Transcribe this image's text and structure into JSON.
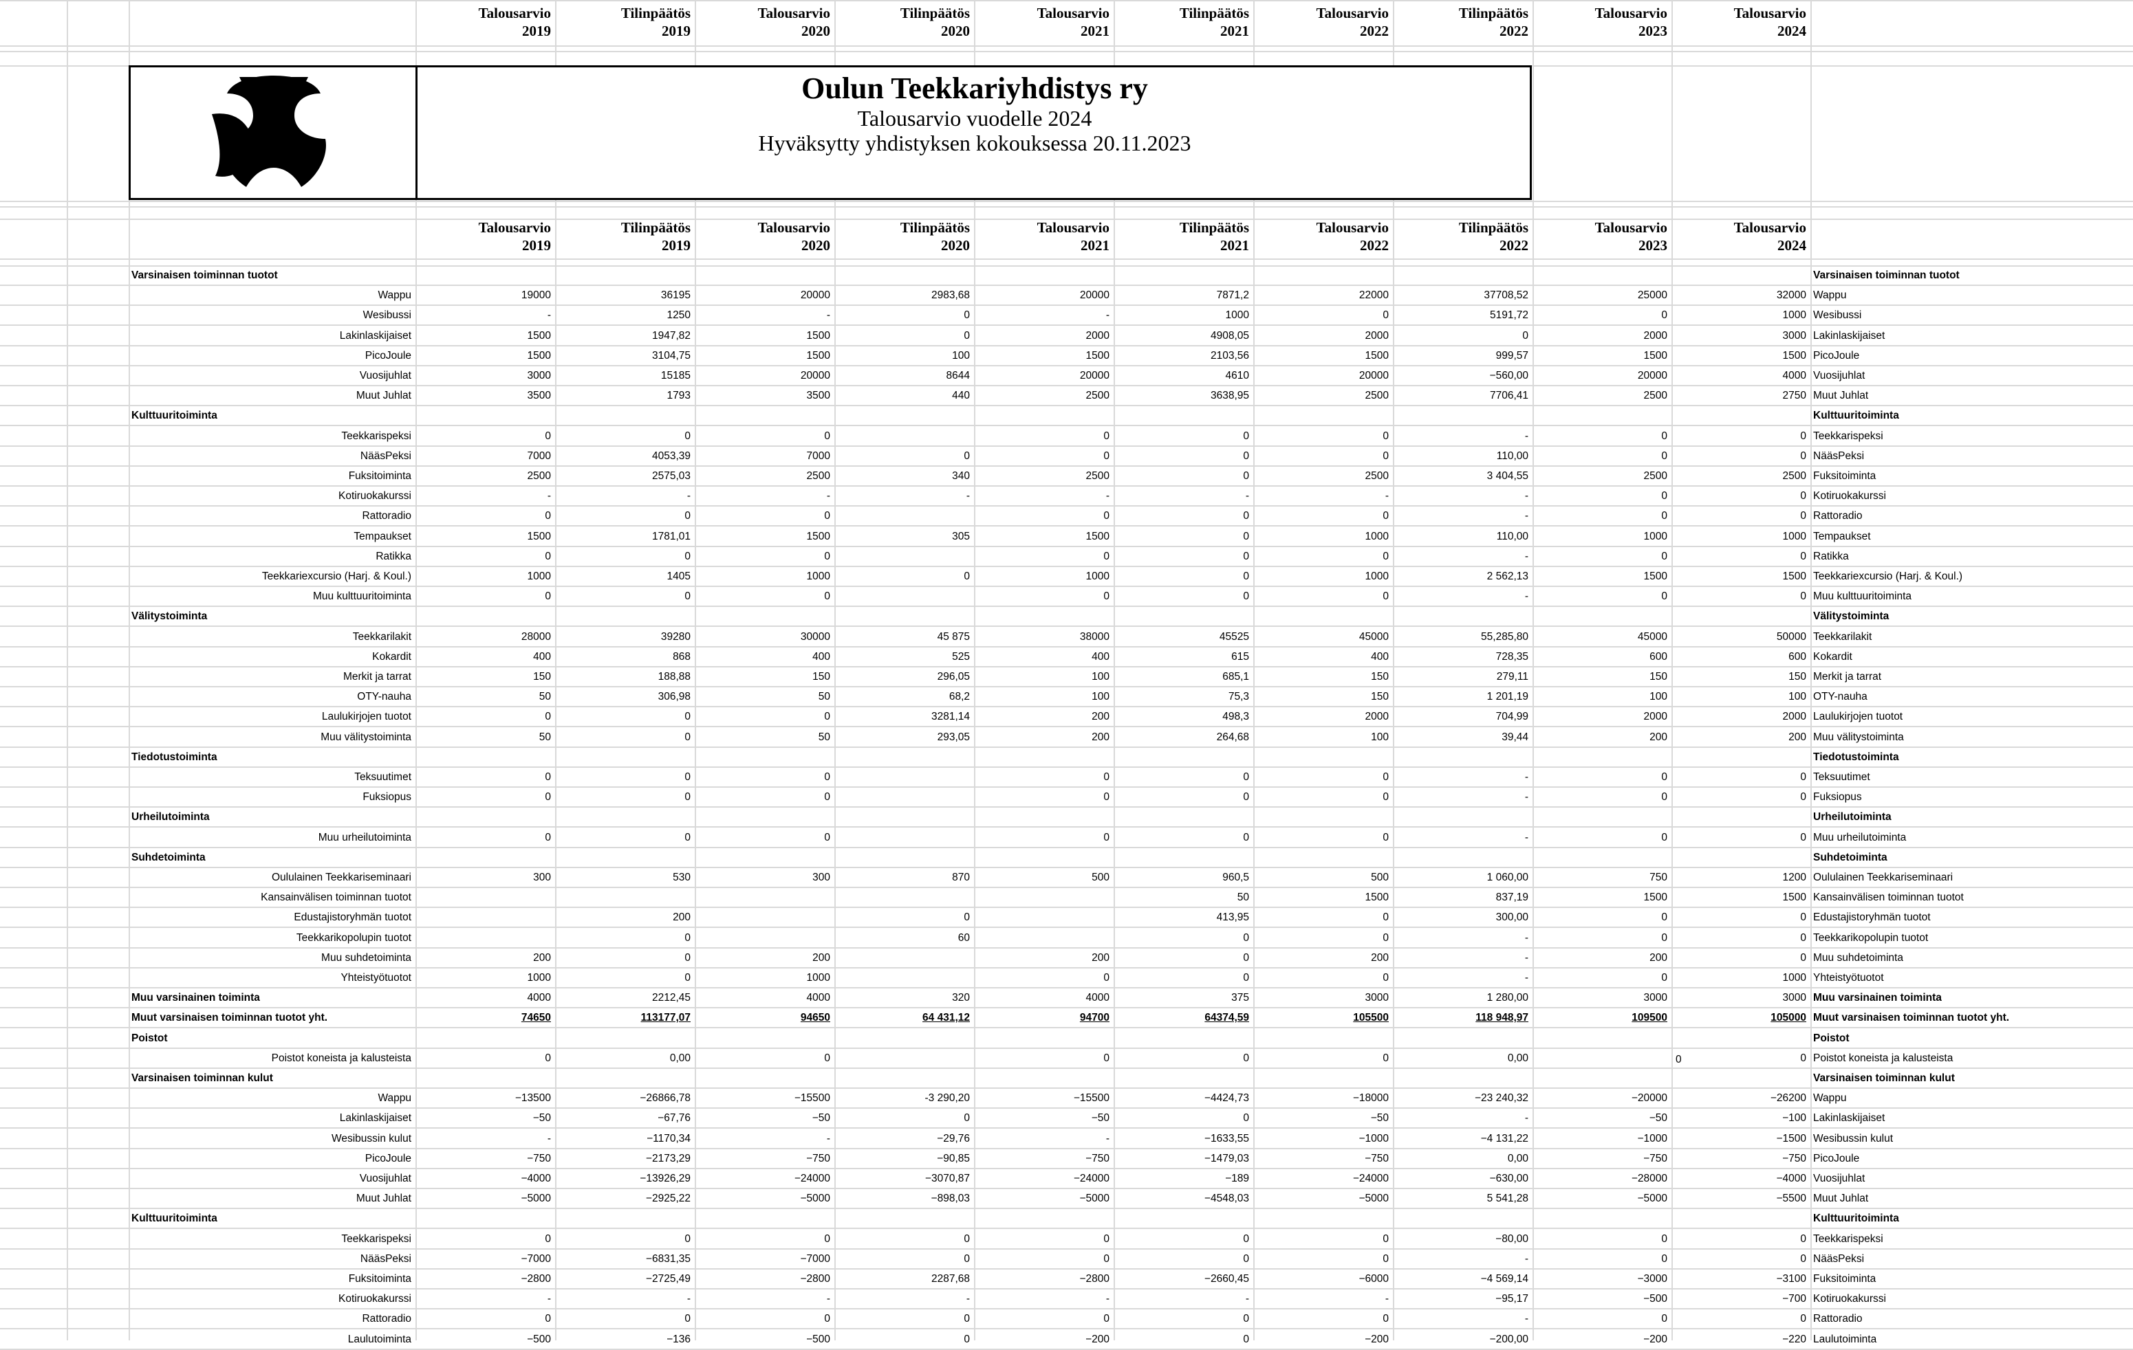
{
  "document": {
    "title": "Oulun Teekkariyhdistys ry",
    "subtitle": "Talousarvio vuodelle 2024",
    "approval": "Hyväksytty yhdistyksen kokouksessa 20.11.2023"
  },
  "header_labels": [
    [
      "Talousarvio",
      "2019"
    ],
    [
      "Tilinpäätös",
      "2019"
    ],
    [
      "Talousarvio",
      "2020"
    ],
    [
      "Tilinpäätös",
      "2020"
    ],
    [
      "Talousarvio",
      "2021"
    ],
    [
      "Tilinpäätös",
      "2021"
    ],
    [
      "Talousarvio",
      "2022"
    ],
    [
      "Tilinpäätös",
      "2022"
    ],
    [
      "Talousarvio",
      "2023"
    ],
    [
      "Talousarvio",
      "2024"
    ]
  ],
  "rows": [
    {
      "type": "section",
      "label": "Varsinaisen toiminnan tuotot"
    },
    {
      "type": "item",
      "label": "Wappu",
      "values": [
        "19000",
        "36195",
        "20000",
        "2983,68",
        "20000",
        "7871,2",
        "22000",
        "37708,52",
        "25000",
        "32000"
      ]
    },
    {
      "type": "item",
      "label": "Wesibussi",
      "values": [
        "-",
        "1250",
        "-",
        "0",
        "-",
        "1000",
        "0",
        "5191,72",
        "0",
        "1000"
      ]
    },
    {
      "type": "item",
      "label": "Lakinlaskijaiset",
      "values": [
        "1500",
        "1947,82",
        "1500",
        "0",
        "2000",
        "4908,05",
        "2000",
        "0",
        "2000",
        "3000"
      ]
    },
    {
      "type": "item",
      "label": "PicoJoule",
      "values": [
        "1500",
        "3104,75",
        "1500",
        "100",
        "1500",
        "2103,56",
        "1500",
        "999,57",
        "1500",
        "1500"
      ]
    },
    {
      "type": "item",
      "label": "Vuosijuhlat",
      "values": [
        "3000",
        "15185",
        "20000",
        "8644",
        "20000",
        "4610",
        "20000",
        "−560,00",
        "20000",
        "4000"
      ]
    },
    {
      "type": "item",
      "label": "Muut Juhlat",
      "values": [
        "3500",
        "1793",
        "3500",
        "440",
        "2500",
        "3638,95",
        "2500",
        "7706,41",
        "2500",
        "2750"
      ]
    },
    {
      "type": "section",
      "label": "Kulttuuritoiminta"
    },
    {
      "type": "item",
      "label": "Teekkarispeksi",
      "values": [
        "0",
        "0",
        "0",
        "",
        "0",
        "0",
        "0",
        "-",
        "0",
        "0"
      ]
    },
    {
      "type": "item",
      "label": "NääsPeksi",
      "values": [
        "7000",
        "4053,39",
        "7000",
        "0",
        "0",
        "0",
        "0",
        "110,00",
        "0",
        "0"
      ]
    },
    {
      "type": "item",
      "label": "Fuksitoiminta",
      "values": [
        "2500",
        "2575,03",
        "2500",
        "340",
        "2500",
        "0",
        "2500",
        "3 404,55",
        "2500",
        "2500"
      ]
    },
    {
      "type": "item",
      "label": "Kotiruokakurssi",
      "values": [
        "-",
        "-",
        "-",
        "-",
        "-",
        "-",
        "-",
        "-",
        "0",
        "0"
      ]
    },
    {
      "type": "item",
      "label": "Rattoradio",
      "values": [
        "0",
        "0",
        "0",
        "",
        "0",
        "0",
        "0",
        "-",
        "0",
        "0"
      ]
    },
    {
      "type": "item",
      "label": "Tempaukset",
      "values": [
        "1500",
        "1781,01",
        "1500",
        "305",
        "1500",
        "0",
        "1000",
        "110,00",
        "1000",
        "1000"
      ]
    },
    {
      "type": "item",
      "label": "Ratikka",
      "values": [
        "0",
        "0",
        "0",
        "",
        "0",
        "0",
        "0",
        "-",
        "0",
        "0"
      ]
    },
    {
      "type": "item",
      "label": "Teekkariexcursio (Harj. & Koul.)",
      "values": [
        "1000",
        "1405",
        "1000",
        "0",
        "1000",
        "0",
        "1000",
        "2 562,13",
        "1500",
        "1500"
      ]
    },
    {
      "type": "item",
      "label": "Muu kulttuuritoiminta",
      "values": [
        "0",
        "0",
        "0",
        "",
        "0",
        "0",
        "0",
        "-",
        "0",
        "0"
      ]
    },
    {
      "type": "section",
      "label": "Välitystoiminta"
    },
    {
      "type": "item",
      "label": "Teekkarilakit",
      "values": [
        "28000",
        "39280",
        "30000",
        "45 875",
        "38000",
        "45525",
        "45000",
        "55,285,80",
        "45000",
        "50000"
      ]
    },
    {
      "type": "item",
      "label": "Kokardit",
      "values": [
        "400",
        "868",
        "400",
        "525",
        "400",
        "615",
        "400",
        "728,35",
        "600",
        "600"
      ]
    },
    {
      "type": "item",
      "label": "Merkit ja tarrat",
      "values": [
        "150",
        "188,88",
        "150",
        "296,05",
        "100",
        "685,1",
        "150",
        "279,11",
        "150",
        "150"
      ]
    },
    {
      "type": "item",
      "label": "OTY-nauha",
      "values": [
        "50",
        "306,98",
        "50",
        "68,2",
        "100",
        "75,3",
        "150",
        "1 201,19",
        "100",
        "100"
      ]
    },
    {
      "type": "item",
      "label": "Laulukirjojen tuotot",
      "values": [
        "0",
        "0",
        "0",
        "3281,14",
        "200",
        "498,3",
        "2000",
        "704,99",
        "2000",
        "2000"
      ]
    },
    {
      "type": "item",
      "label": "Muu välitystoiminta",
      "values": [
        "50",
        "0",
        "50",
        "293,05",
        "200",
        "264,68",
        "100",
        "39,44",
        "200",
        "200"
      ]
    },
    {
      "type": "section",
      "label": "Tiedotustoiminta"
    },
    {
      "type": "item",
      "label": "Teksuutimet",
      "values": [
        "0",
        "0",
        "0",
        "",
        "0",
        "0",
        "0",
        "-",
        "0",
        "0"
      ]
    },
    {
      "type": "item",
      "label": "Fuksiopus",
      "values": [
        "0",
        "0",
        "0",
        "",
        "0",
        "0",
        "0",
        "-",
        "0",
        "0"
      ]
    },
    {
      "type": "section",
      "label": "Urheilutoiminta"
    },
    {
      "type": "item",
      "label": "Muu urheilutoiminta",
      "values": [
        "0",
        "0",
        "0",
        "",
        "0",
        "0",
        "0",
        "-",
        "0",
        "0"
      ]
    },
    {
      "type": "section",
      "label": "Suhdetoiminta"
    },
    {
      "type": "item",
      "label": "Oululainen Teekkariseminaari",
      "values": [
        "300",
        "530",
        "300",
        "870",
        "500",
        "960,5",
        "500",
        "1 060,00",
        "750",
        "1200"
      ]
    },
    {
      "type": "item",
      "label": "Kansainvälisen toiminnan tuotot",
      "values": [
        "",
        "",
        "",
        "",
        "",
        "50",
        "1500",
        "837,19",
        "1500",
        "1500"
      ]
    },
    {
      "type": "item",
      "label": "Edustajistoryhmän tuotot",
      "values": [
        "",
        "200",
        "",
        "0",
        "",
        "413,95",
        "0",
        "300,00",
        "0",
        "0"
      ]
    },
    {
      "type": "item",
      "label": "Teekkarikopolupin tuotot",
      "values": [
        "",
        "0",
        "",
        "60",
        "",
        "0",
        "0",
        "-",
        "0",
        "0"
      ]
    },
    {
      "type": "item",
      "label": "Muu suhdetoiminta",
      "values": [
        "200",
        "0",
        "200",
        "",
        "200",
        "0",
        "200",
        "-",
        "200",
        "0"
      ]
    },
    {
      "type": "item",
      "label": "Yhteistyötuotot",
      "values": [
        "1000",
        "0",
        "1000",
        "",
        "0",
        "0",
        "0",
        "-",
        "0",
        "1000"
      ]
    },
    {
      "type": "boldrow",
      "label": "Muu varsinainen toiminta",
      "values": [
        "4000",
        "2212,45",
        "4000",
        "320",
        "4000",
        "375",
        "3000",
        "1 280,00",
        "3000",
        "3000"
      ]
    },
    {
      "type": "total",
      "label": "Muut varsinaisen toiminnan tuotot yht.",
      "values": [
        "74650",
        "113177,07",
        "94650",
        "64 431,12",
        "94700",
        "64374,59",
        "105500",
        "118 948,97",
        "109500",
        "105000"
      ]
    },
    {
      "type": "section",
      "label": "Poistot"
    },
    {
      "type": "item",
      "label": "Poistot koneista ja kalusteista",
      "values": [
        "0",
        "0,00",
        "0",
        "",
        "0",
        "0",
        "0",
        "0,00",
        "",
        "0"
      ],
      "last_left": "0"
    },
    {
      "type": "section",
      "label": "Varsinaisen toiminnan kulut"
    },
    {
      "type": "item",
      "label": "Wappu",
      "values": [
        "−13500",
        "−26866,78",
        "−15500",
        "-3 290,20",
        "−15500",
        "−4424,73",
        "−18000",
        "−23 240,32",
        "−20000",
        "−26200"
      ]
    },
    {
      "type": "item",
      "label": "Lakinlaskijaiset",
      "values": [
        "−50",
        "−67,76",
        "−50",
        "0",
        "−50",
        "0",
        "−50",
        "-",
        "−50",
        "−100"
      ]
    },
    {
      "type": "item",
      "label": "Wesibussin kulut",
      "values": [
        "-",
        "−1170,34",
        "-",
        "−29,76",
        "-",
        "−1633,55",
        "−1000",
        "−4 131,22",
        "−1000",
        "−1500"
      ]
    },
    {
      "type": "item",
      "label": "PicoJoule",
      "values": [
        "−750",
        "−2173,29",
        "−750",
        "−90,85",
        "−750",
        "−1479,03",
        "−750",
        "0,00",
        "−750",
        "−750"
      ]
    },
    {
      "type": "item",
      "label": "Vuosijuhlat",
      "values": [
        "−4000",
        "−13926,29",
        "−24000",
        "−3070,87",
        "−24000",
        "−189",
        "−24000",
        "−630,00",
        "−28000",
        "−4000"
      ]
    },
    {
      "type": "item",
      "label": "Muut Juhlat",
      "values": [
        "−5000",
        "−2925,22",
        "−5000",
        "−898,03",
        "−5000",
        "−4548,03",
        "−5000",
        "5 541,28",
        "−5000",
        "−5500"
      ]
    },
    {
      "type": "section",
      "label": "Kulttuuritoiminta"
    },
    {
      "type": "item",
      "label": "Teekkarispeksi",
      "values": [
        "0",
        "0",
        "0",
        "0",
        "0",
        "0",
        "0",
        "−80,00",
        "0",
        "0"
      ]
    },
    {
      "type": "item",
      "label": "NääsPeksi",
      "values": [
        "−7000",
        "−6831,35",
        "−7000",
        "0",
        "0",
        "0",
        "0",
        "-",
        "0",
        "0"
      ]
    },
    {
      "type": "item",
      "label": "Fuksitoiminta",
      "values": [
        "−2800",
        "−2725,49",
        "−2800",
        "2287,68",
        "−2800",
        "−2660,45",
        "−6000",
        "−4 569,14",
        "−3000",
        "−3100"
      ]
    },
    {
      "type": "item",
      "label": "Kotiruokakurssi",
      "values": [
        "-",
        "-",
        "-",
        "-",
        "-",
        "-",
        "-",
        "−95,17",
        "−500",
        "−700"
      ]
    },
    {
      "type": "item",
      "label": "Rattoradio",
      "values": [
        "0",
        "0",
        "0",
        "0",
        "0",
        "0",
        "0",
        "-",
        "0",
        "0"
      ]
    },
    {
      "type": "item",
      "label": "Laulutoiminta",
      "values": [
        "−500",
        "−136",
        "−500",
        "0",
        "−200",
        "0",
        "−200",
        "−200,00",
        "−200",
        "−220"
      ]
    }
  ]
}
